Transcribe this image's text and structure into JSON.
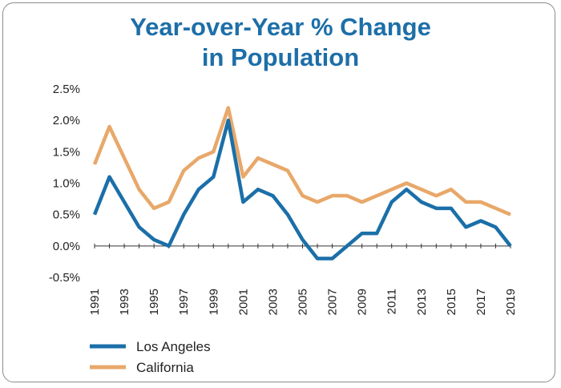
{
  "chart_data": {
    "type": "line",
    "title_lines": [
      "Year-over-Year % Change",
      "in Population"
    ],
    "x": [
      1991,
      1992,
      1993,
      1994,
      1995,
      1996,
      1997,
      1998,
      1999,
      2000,
      2001,
      2002,
      2003,
      2004,
      2005,
      2006,
      2007,
      2008,
      2009,
      2010,
      2011,
      2012,
      2013,
      2014,
      2015,
      2016,
      2017,
      2018,
      2019
    ],
    "x_tick_labels": [
      "1991",
      "1993",
      "1995",
      "1997",
      "1999",
      "2001",
      "2003",
      "2005",
      "2007",
      "2009",
      "2011",
      "2013",
      "2015",
      "2017",
      "2019"
    ],
    "y_tick_labels": [
      "2.5%",
      "2.0%",
      "1.5%",
      "1.0%",
      "0.5%",
      "0.0%",
      "-0.5%"
    ],
    "y_ticks": [
      2.5,
      2.0,
      1.5,
      1.0,
      0.5,
      0.0,
      -0.5
    ],
    "ylim": [
      -0.5,
      2.5
    ],
    "series": [
      {
        "name": "Los Angeles",
        "color": "#1b6fa8",
        "values": [
          0.5,
          1.1,
          0.7,
          0.3,
          0.1,
          0.0,
          0.5,
          0.9,
          1.1,
          2.0,
          0.7,
          0.9,
          0.8,
          0.5,
          0.1,
          -0.2,
          -0.2,
          0.0,
          0.2,
          0.2,
          0.7,
          0.9,
          0.7,
          0.6,
          0.6,
          0.3,
          0.4,
          0.3,
          0.0
        ]
      },
      {
        "name": "California",
        "color": "#e8a86a",
        "values": [
          1.3,
          1.9,
          1.4,
          0.9,
          0.6,
          0.7,
          1.2,
          1.4,
          1.5,
          2.2,
          1.1,
          1.4,
          1.3,
          1.2,
          0.8,
          0.7,
          0.8,
          0.8,
          0.7,
          0.8,
          0.9,
          1.0,
          0.9,
          0.8,
          0.9,
          0.7,
          0.7,
          0.6,
          0.5
        ]
      }
    ],
    "grid": false,
    "legend_position": "bottom-left"
  }
}
